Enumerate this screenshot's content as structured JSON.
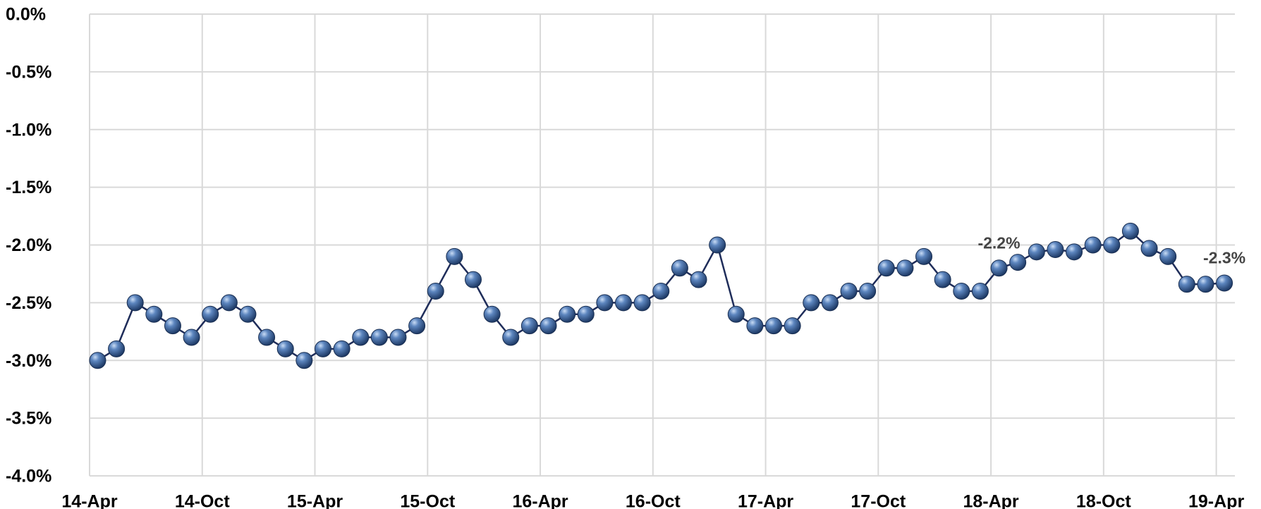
{
  "chart_data": {
    "type": "line",
    "categories": [
      "14-Apr",
      null,
      null,
      null,
      null,
      null,
      "14-Oct",
      null,
      null,
      null,
      null,
      null,
      "15-Apr",
      null,
      null,
      null,
      null,
      null,
      "15-Oct",
      null,
      null,
      null,
      null,
      null,
      "16-Apr",
      null,
      null,
      null,
      null,
      null,
      "16-Oct",
      null,
      null,
      null,
      null,
      null,
      "17-Apr",
      null,
      null,
      null,
      null,
      null,
      "17-Oct",
      null,
      null,
      null,
      null,
      null,
      "18-Apr",
      null,
      null,
      null,
      null,
      null,
      "18-Oct",
      null,
      null,
      null,
      null,
      null,
      "19-Apr"
    ],
    "series": [
      {
        "name": null,
        "color": "#4a6fa5",
        "values": [
          -3.0,
          -2.9,
          -2.5,
          -2.6,
          -2.7,
          -2.8,
          -2.6,
          -2.5,
          -2.6,
          -2.8,
          -2.9,
          -3.0,
          -2.9,
          -2.9,
          -2.8,
          -2.8,
          -2.8,
          -2.7,
          -2.4,
          -2.1,
          -2.3,
          -2.6,
          -2.8,
          -2.7,
          -2.7,
          -2.6,
          -2.6,
          -2.5,
          -2.5,
          -2.5,
          -2.4,
          -2.2,
          -2.3,
          -2.0,
          -2.6,
          -2.7,
          -2.7,
          -2.7,
          -2.5,
          -2.5,
          -2.4,
          -2.4,
          -2.2,
          -2.2,
          -2.1,
          -2.3,
          -2.4,
          -2.4,
          -2.2,
          -2.15,
          -2.06,
          -2.04,
          -2.06,
          -2.0,
          -2.0,
          -1.88,
          -2.03,
          -2.1,
          -2.34,
          -2.34,
          -2.33
        ],
        "value_labels": [
          null,
          null,
          null,
          null,
          null,
          null,
          null,
          null,
          null,
          null,
          null,
          null,
          null,
          null,
          null,
          null,
          null,
          null,
          null,
          null,
          null,
          null,
          null,
          null,
          null,
          null,
          null,
          null,
          null,
          null,
          null,
          null,
          null,
          null,
          null,
          null,
          null,
          null,
          null,
          null,
          null,
          null,
          null,
          null,
          null,
          null,
          null,
          null,
          "-2.2%",
          null,
          null,
          null,
          null,
          null,
          null,
          null,
          null,
          null,
          null,
          null,
          "-2.3%"
        ]
      }
    ],
    "ylim": [
      -4.0,
      0.0
    ],
    "yticks": [
      {
        "value": 0.0,
        "label": "0.0%"
      },
      {
        "value": -0.5,
        "label": "-0.5%"
      },
      {
        "value": -1.0,
        "label": "-1.0%"
      },
      {
        "value": -1.5,
        "label": "-1.5%"
      },
      {
        "value": -2.0,
        "label": "-2.0%"
      },
      {
        "value": -2.5,
        "label": "-2.5%"
      },
      {
        "value": -3.0,
        "label": "-3.0%"
      },
      {
        "value": -3.5,
        "label": "-3.5%"
      },
      {
        "value": -4.0,
        "label": "-4.0%"
      }
    ],
    "grid": true
  }
}
